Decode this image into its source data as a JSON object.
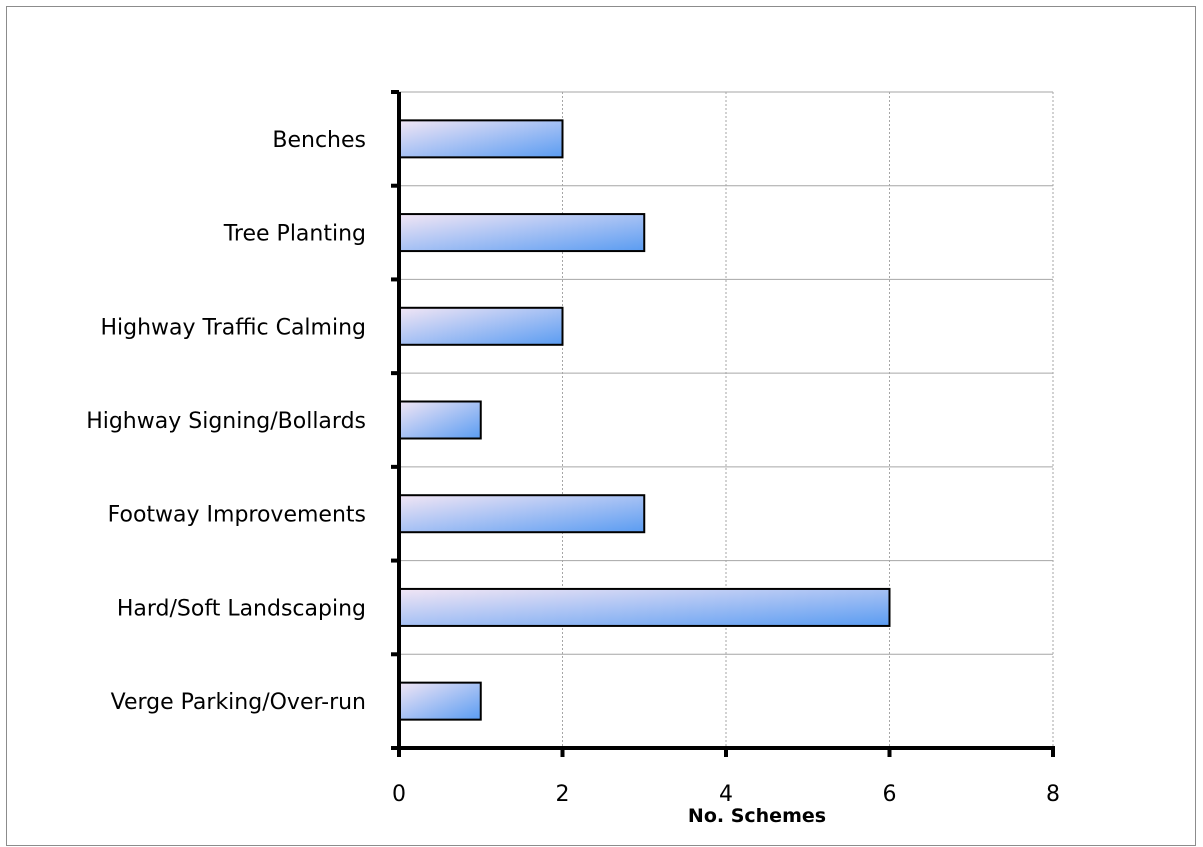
{
  "chart_data": {
    "type": "bar",
    "orientation": "horizontal",
    "categories": [
      "Benches",
      "Tree Planting",
      "Highway Traffic Calming",
      "Highway Signing/Bollards",
      "Footway Improvements",
      "Hard/Soft Landscaping",
      "Verge Parking/Over-run"
    ],
    "values": [
      2,
      3,
      2,
      1,
      3,
      6,
      1
    ],
    "xlabel": "No. Schemes",
    "ylabel": "",
    "xlim": [
      0,
      8
    ],
    "xticks": [
      0,
      2,
      4,
      6,
      8
    ],
    "xtick_labels": [
      "0",
      "2",
      "4",
      "6",
      "8"
    ],
    "grid": true,
    "legend": "none",
    "colors": {
      "bar_gradient_start": "#f2e6f5",
      "bar_gradient_end": "#5a9cf2",
      "bar_outline": "#000000",
      "grid": "#a6a6a6",
      "axis": "#000000"
    }
  }
}
